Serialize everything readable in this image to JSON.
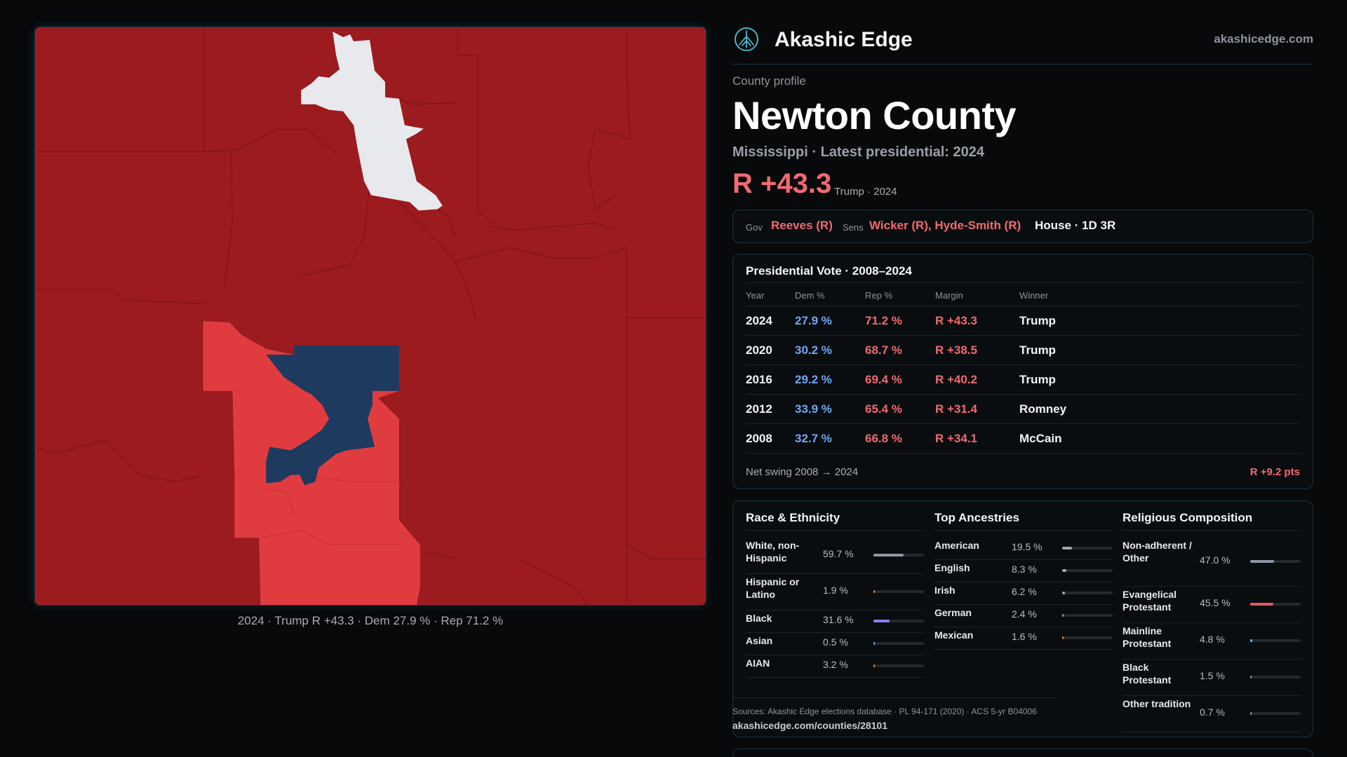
{
  "brand": {
    "name": "Akashic Edge",
    "url": "akashicedge.com",
    "logo_icon": "tree-emblem-icon"
  },
  "profile": {
    "eyebrow": "County profile",
    "title": "Newton County",
    "subtitle": "Mississippi · Latest presidential: 2024",
    "margin": "R +43.3",
    "margin_note": "Trump · 2024"
  },
  "officials": {
    "gov_label": "Gov",
    "gov": "Reeves (R)",
    "sens_label": "Sens",
    "sens": "Wicker (R), Hyde-Smith (R)",
    "house": "House · 1D 3R"
  },
  "votes": {
    "title": "Presidential Vote · 2008–2024",
    "columns": [
      "Year",
      "Dem %",
      "Rep %",
      "Margin",
      "Winner"
    ],
    "rows": [
      {
        "year": "2024",
        "dem": "27.9 %",
        "rep": "71.2 %",
        "margin": "R +43.3",
        "winner": "Trump"
      },
      {
        "year": "2020",
        "dem": "30.2 %",
        "rep": "68.7 %",
        "margin": "R +38.5",
        "winner": "Trump"
      },
      {
        "year": "2016",
        "dem": "29.2 %",
        "rep": "69.4 %",
        "margin": "R +40.2",
        "winner": "Trump"
      },
      {
        "year": "2012",
        "dem": "33.9 %",
        "rep": "65.4 %",
        "margin": "R +31.4",
        "winner": "Romney"
      },
      {
        "year": "2008",
        "dem": "32.7 %",
        "rep": "66.8 %",
        "margin": "R +34.1",
        "winner": "McCain"
      }
    ],
    "swing_label": "Net swing 2008 → 2024",
    "swing_value": "R +9.2 pts"
  },
  "race": {
    "title": "Race & Ethnicity",
    "items": [
      {
        "label": "White, non-Hispanic",
        "value": "59.7 %",
        "pct": 59.7,
        "color": "#8e96a6"
      },
      {
        "label": "Hispanic or Latino",
        "value": "1.9 %",
        "pct": 1.9,
        "color": "#e8893a"
      },
      {
        "label": "Black",
        "value": "31.6 %",
        "pct": 31.6,
        "color": "#8f7cf0"
      },
      {
        "label": "Asian",
        "value": "0.5 %",
        "pct": 0.5,
        "color": "#6ea8f5"
      },
      {
        "label": "AIAN",
        "value": "3.2 %",
        "pct": 3.2,
        "color": "#e8893a"
      }
    ]
  },
  "ancestry": {
    "title": "Top Ancestries",
    "items": [
      {
        "label": "American",
        "value": "19.5 %",
        "pct": 19.5,
        "color": "#9ea4ac"
      },
      {
        "label": "English",
        "value": "8.3 %",
        "pct": 8.3,
        "color": "#9ea4ac"
      },
      {
        "label": "Irish",
        "value": "6.2 %",
        "pct": 6.2,
        "color": "#9ea4ac"
      },
      {
        "label": "German",
        "value": "2.4 %",
        "pct": 2.4,
        "color": "#9ea4ac"
      },
      {
        "label": "Mexican",
        "value": "1.6 %",
        "pct": 1.6,
        "color": "#e8893a"
      }
    ]
  },
  "religion": {
    "title": "Religious Composition",
    "items": [
      {
        "label": "Non-adherent / Other",
        "value": "47.0 %",
        "pct": 47.0,
        "color": "#8e96a6"
      },
      {
        "label": "Evangelical Protestant",
        "value": "45.5 %",
        "pct": 45.5,
        "color": "#e05a5f"
      },
      {
        "label": "Mainline Protestant",
        "value": "4.8 %",
        "pct": 4.8,
        "color": "#6ea8f5"
      },
      {
        "label": "Black Protestant",
        "value": "1.5 %",
        "pct": 1.5,
        "color": "#8e96a6"
      },
      {
        "label": "Other tradition",
        "value": "0.7 %",
        "pct": 0.7,
        "color": "#8e96a6"
      }
    ]
  },
  "sources": {
    "text": "Sources: Akashic Edge elections database · PL 94-171 (2020) · ACS 5-yr B04006",
    "url": "akashicedge.com/counties/28101"
  },
  "map": {
    "caption": "2024 · Trump R +43.3 · Dem 27.9 % · Rep 71.2 %",
    "colors": {
      "strong_rep": "#9b1b1f",
      "lean_rep": "#e03c40",
      "dem": "#1e3a5f",
      "tie": "#e8e9ec"
    }
  }
}
